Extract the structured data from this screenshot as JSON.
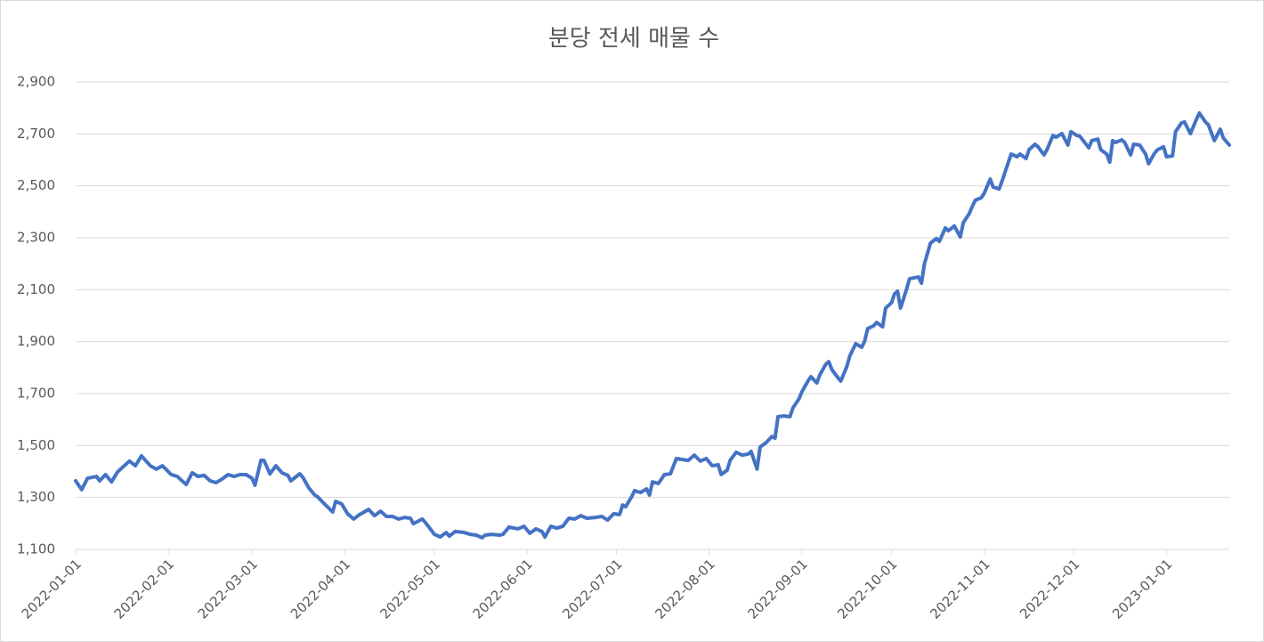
{
  "chart_data": {
    "type": "line",
    "title": "분당 전세 매물 수",
    "x": [
      "2022-01-01",
      "2022-01-03",
      "2022-01-05",
      "2022-01-08",
      "2022-01-09",
      "2022-01-11",
      "2022-01-13",
      "2022-01-15",
      "2022-01-19",
      "2022-01-21",
      "2022-01-23",
      "2022-01-26",
      "2022-01-28",
      "2022-01-30",
      "2022-02-02",
      "2022-02-04",
      "2022-02-06",
      "2022-02-07",
      "2022-02-09",
      "2022-02-11",
      "2022-02-13",
      "2022-02-15",
      "2022-02-17",
      "2022-02-19",
      "2022-02-21",
      "2022-02-23",
      "2022-02-25",
      "2022-02-27",
      "2022-03-01",
      "2022-03-02",
      "2022-03-04",
      "2022-03-05",
      "2022-03-07",
      "2022-03-09",
      "2022-03-11",
      "2022-03-13",
      "2022-03-14",
      "2022-03-17",
      "2022-03-18",
      "2022-03-20",
      "2022-03-22",
      "2022-03-23",
      "2022-03-25",
      "2022-03-28",
      "2022-03-29",
      "2022-03-31",
      "2022-04-02",
      "2022-04-04",
      "2022-04-06",
      "2022-04-08",
      "2022-04-09",
      "2022-04-11",
      "2022-04-13",
      "2022-04-15",
      "2022-04-17",
      "2022-04-19",
      "2022-04-21",
      "2022-04-23",
      "2022-04-24",
      "2022-04-27",
      "2022-04-29",
      "2022-05-01",
      "2022-05-03",
      "2022-05-05",
      "2022-05-06",
      "2022-05-08",
      "2022-05-11",
      "2022-05-13",
      "2022-05-15",
      "2022-05-17",
      "2022-05-18",
      "2022-05-20",
      "2022-05-23",
      "2022-05-24",
      "2022-05-26",
      "2022-05-29",
      "2022-05-31",
      "2022-06-02",
      "2022-06-04",
      "2022-06-06",
      "2022-06-07",
      "2022-06-09",
      "2022-06-11",
      "2022-06-13",
      "2022-06-15",
      "2022-06-17",
      "2022-06-19",
      "2022-06-21",
      "2022-06-24",
      "2022-06-26",
      "2022-06-28",
      "2022-06-30",
      "2022-07-02",
      "2022-07-03",
      "2022-07-04",
      "2022-07-06",
      "2022-07-07",
      "2022-07-09",
      "2022-07-11",
      "2022-07-12",
      "2022-07-13",
      "2022-07-15",
      "2022-07-17",
      "2022-07-19",
      "2022-07-21",
      "2022-07-23",
      "2022-07-25",
      "2022-07-27",
      "2022-07-29",
      "2022-07-31",
      "2022-08-02",
      "2022-08-04",
      "2022-08-05",
      "2022-08-07",
      "2022-08-08",
      "2022-08-10",
      "2022-08-12",
      "2022-08-14",
      "2022-08-15",
      "2022-08-17",
      "2022-08-18",
      "2022-08-20",
      "2022-08-22",
      "2022-08-23",
      "2022-08-24",
      "2022-08-26",
      "2022-08-28",
      "2022-08-29",
      "2022-08-31",
      "2022-09-01",
      "2022-09-03",
      "2022-09-04",
      "2022-09-06",
      "2022-09-07",
      "2022-09-09",
      "2022-09-10",
      "2022-09-11",
      "2022-09-13",
      "2022-09-14",
      "2022-09-16",
      "2022-09-17",
      "2022-09-19",
      "2022-09-21",
      "2022-09-22",
      "2022-09-23",
      "2022-09-25",
      "2022-09-26",
      "2022-09-28",
      "2022-09-29",
      "2022-10-01",
      "2022-10-02",
      "2022-10-03",
      "2022-10-04",
      "2022-10-06",
      "2022-10-07",
      "2022-10-10",
      "2022-10-11",
      "2022-10-12",
      "2022-10-14",
      "2022-10-16",
      "2022-10-17",
      "2022-10-19",
      "2022-10-20",
      "2022-10-22",
      "2022-10-24",
      "2022-10-25",
      "2022-10-27",
      "2022-10-28",
      "2022-10-29",
      "2022-10-31",
      "2022-11-01",
      "2022-11-03",
      "2022-11-04",
      "2022-11-06",
      "2022-11-07",
      "2022-11-09",
      "2022-11-10",
      "2022-11-12",
      "2022-11-13",
      "2022-11-15",
      "2022-11-16",
      "2022-11-18",
      "2022-11-19",
      "2022-11-21",
      "2022-11-22",
      "2022-11-24",
      "2022-11-25",
      "2022-11-27",
      "2022-11-29",
      "2022-11-30",
      "2022-12-02",
      "2022-12-03",
      "2022-12-06",
      "2022-12-07",
      "2022-12-09",
      "2022-12-10",
      "2022-12-12",
      "2022-12-13",
      "2022-12-14",
      "2022-12-15",
      "2022-12-17",
      "2022-12-18",
      "2022-12-20",
      "2022-12-21",
      "2022-12-23",
      "2022-12-25",
      "2022-12-26",
      "2022-12-28",
      "2022-12-29",
      "2022-12-31",
      "2023-01-01",
      "2023-01-03",
      "2023-01-04",
      "2023-01-06",
      "2023-01-07",
      "2023-01-09",
      "2023-01-11",
      "2023-01-12",
      "2023-01-14",
      "2023-01-15",
      "2023-01-17",
      "2023-01-19",
      "2023-01-20",
      "2023-01-22"
    ],
    "series": [
      {
        "name": "분당 전세 매물 수",
        "color": "#4472c4",
        "values": [
          1364,
          1330,
          1374,
          1381,
          1364,
          1388,
          1360,
          1398,
          1440,
          1422,
          1460,
          1422,
          1409,
          1422,
          1388,
          1381,
          1360,
          1350,
          1395,
          1381,
          1385,
          1364,
          1357,
          1371,
          1388,
          1381,
          1388,
          1388,
          1374,
          1347,
          1443,
          1443,
          1391,
          1422,
          1395,
          1385,
          1364,
          1391,
          1378,
          1337,
          1309,
          1302,
          1278,
          1244,
          1285,
          1275,
          1237,
          1217,
          1234,
          1247,
          1254,
          1230,
          1247,
          1227,
          1227,
          1217,
          1223,
          1220,
          1199,
          1217,
          1189,
          1158,
          1148,
          1165,
          1151,
          1169,
          1165,
          1158,
          1155,
          1145,
          1155,
          1158,
          1155,
          1158,
          1186,
          1179,
          1189,
          1162,
          1179,
          1169,
          1148,
          1189,
          1182,
          1189,
          1220,
          1217,
          1230,
          1220,
          1223,
          1227,
          1213,
          1237,
          1234,
          1271,
          1264,
          1302,
          1326,
          1319,
          1333,
          1309,
          1360,
          1354,
          1388,
          1391,
          1450,
          1446,
          1443,
          1463,
          1440,
          1450,
          1422,
          1426,
          1388,
          1405,
          1443,
          1474,
          1463,
          1467,
          1477,
          1409,
          1494,
          1511,
          1535,
          1528,
          1611,
          1614,
          1611,
          1645,
          1679,
          1707,
          1748,
          1765,
          1741,
          1772,
          1813,
          1823,
          1793,
          1762,
          1748,
          1803,
          1844,
          1892,
          1878,
          1902,
          1950,
          1961,
          1974,
          1957,
          2029,
          2050,
          2084,
          2094,
          2029,
          2101,
          2142,
          2149,
          2125,
          2200,
          2279,
          2297,
          2286,
          2338,
          2327,
          2345,
          2303,
          2358,
          2393,
          2420,
          2444,
          2454,
          2471,
          2526,
          2495,
          2488,
          2519,
          2588,
          2622,
          2612,
          2622,
          2605,
          2639,
          2660,
          2650,
          2619,
          2639,
          2694,
          2687,
          2701,
          2657,
          2708,
          2694,
          2691,
          2646,
          2674,
          2680,
          2639,
          2622,
          2591,
          2674,
          2667,
          2677,
          2667,
          2619,
          2660,
          2657,
          2622,
          2585,
          2626,
          2639,
          2650,
          2612,
          2615,
          2708,
          2742,
          2746,
          2701,
          2756,
          2780,
          2746,
          2735,
          2674,
          2718,
          2684,
          2657
        ]
      }
    ],
    "xlim": [
      "2022-01-01",
      "2023-01-22"
    ],
    "xticks": [
      "2022-01-01",
      "2022-02-01",
      "2022-03-01",
      "2022-04-01",
      "2022-05-01",
      "2022-06-01",
      "2022-07-01",
      "2022-08-01",
      "2022-09-01",
      "2022-10-01",
      "2022-11-01",
      "2022-12-01",
      "2023-01-01"
    ],
    "ylim": [
      1100,
      2900
    ],
    "yticks": [
      {
        "value": 1100,
        "label": "1,100"
      },
      {
        "value": 1300,
        "label": "1,300"
      },
      {
        "value": 1500,
        "label": "1,500"
      },
      {
        "value": 1700,
        "label": "1,700"
      },
      {
        "value": 1900,
        "label": "1,900"
      },
      {
        "value": 2100,
        "label": "2,100"
      },
      {
        "value": 2300,
        "label": "2,300"
      },
      {
        "value": 2500,
        "label": "2,500"
      },
      {
        "value": 2700,
        "label": "2,700"
      },
      {
        "value": 2900,
        "label": "2,900"
      }
    ],
    "grid": true
  }
}
